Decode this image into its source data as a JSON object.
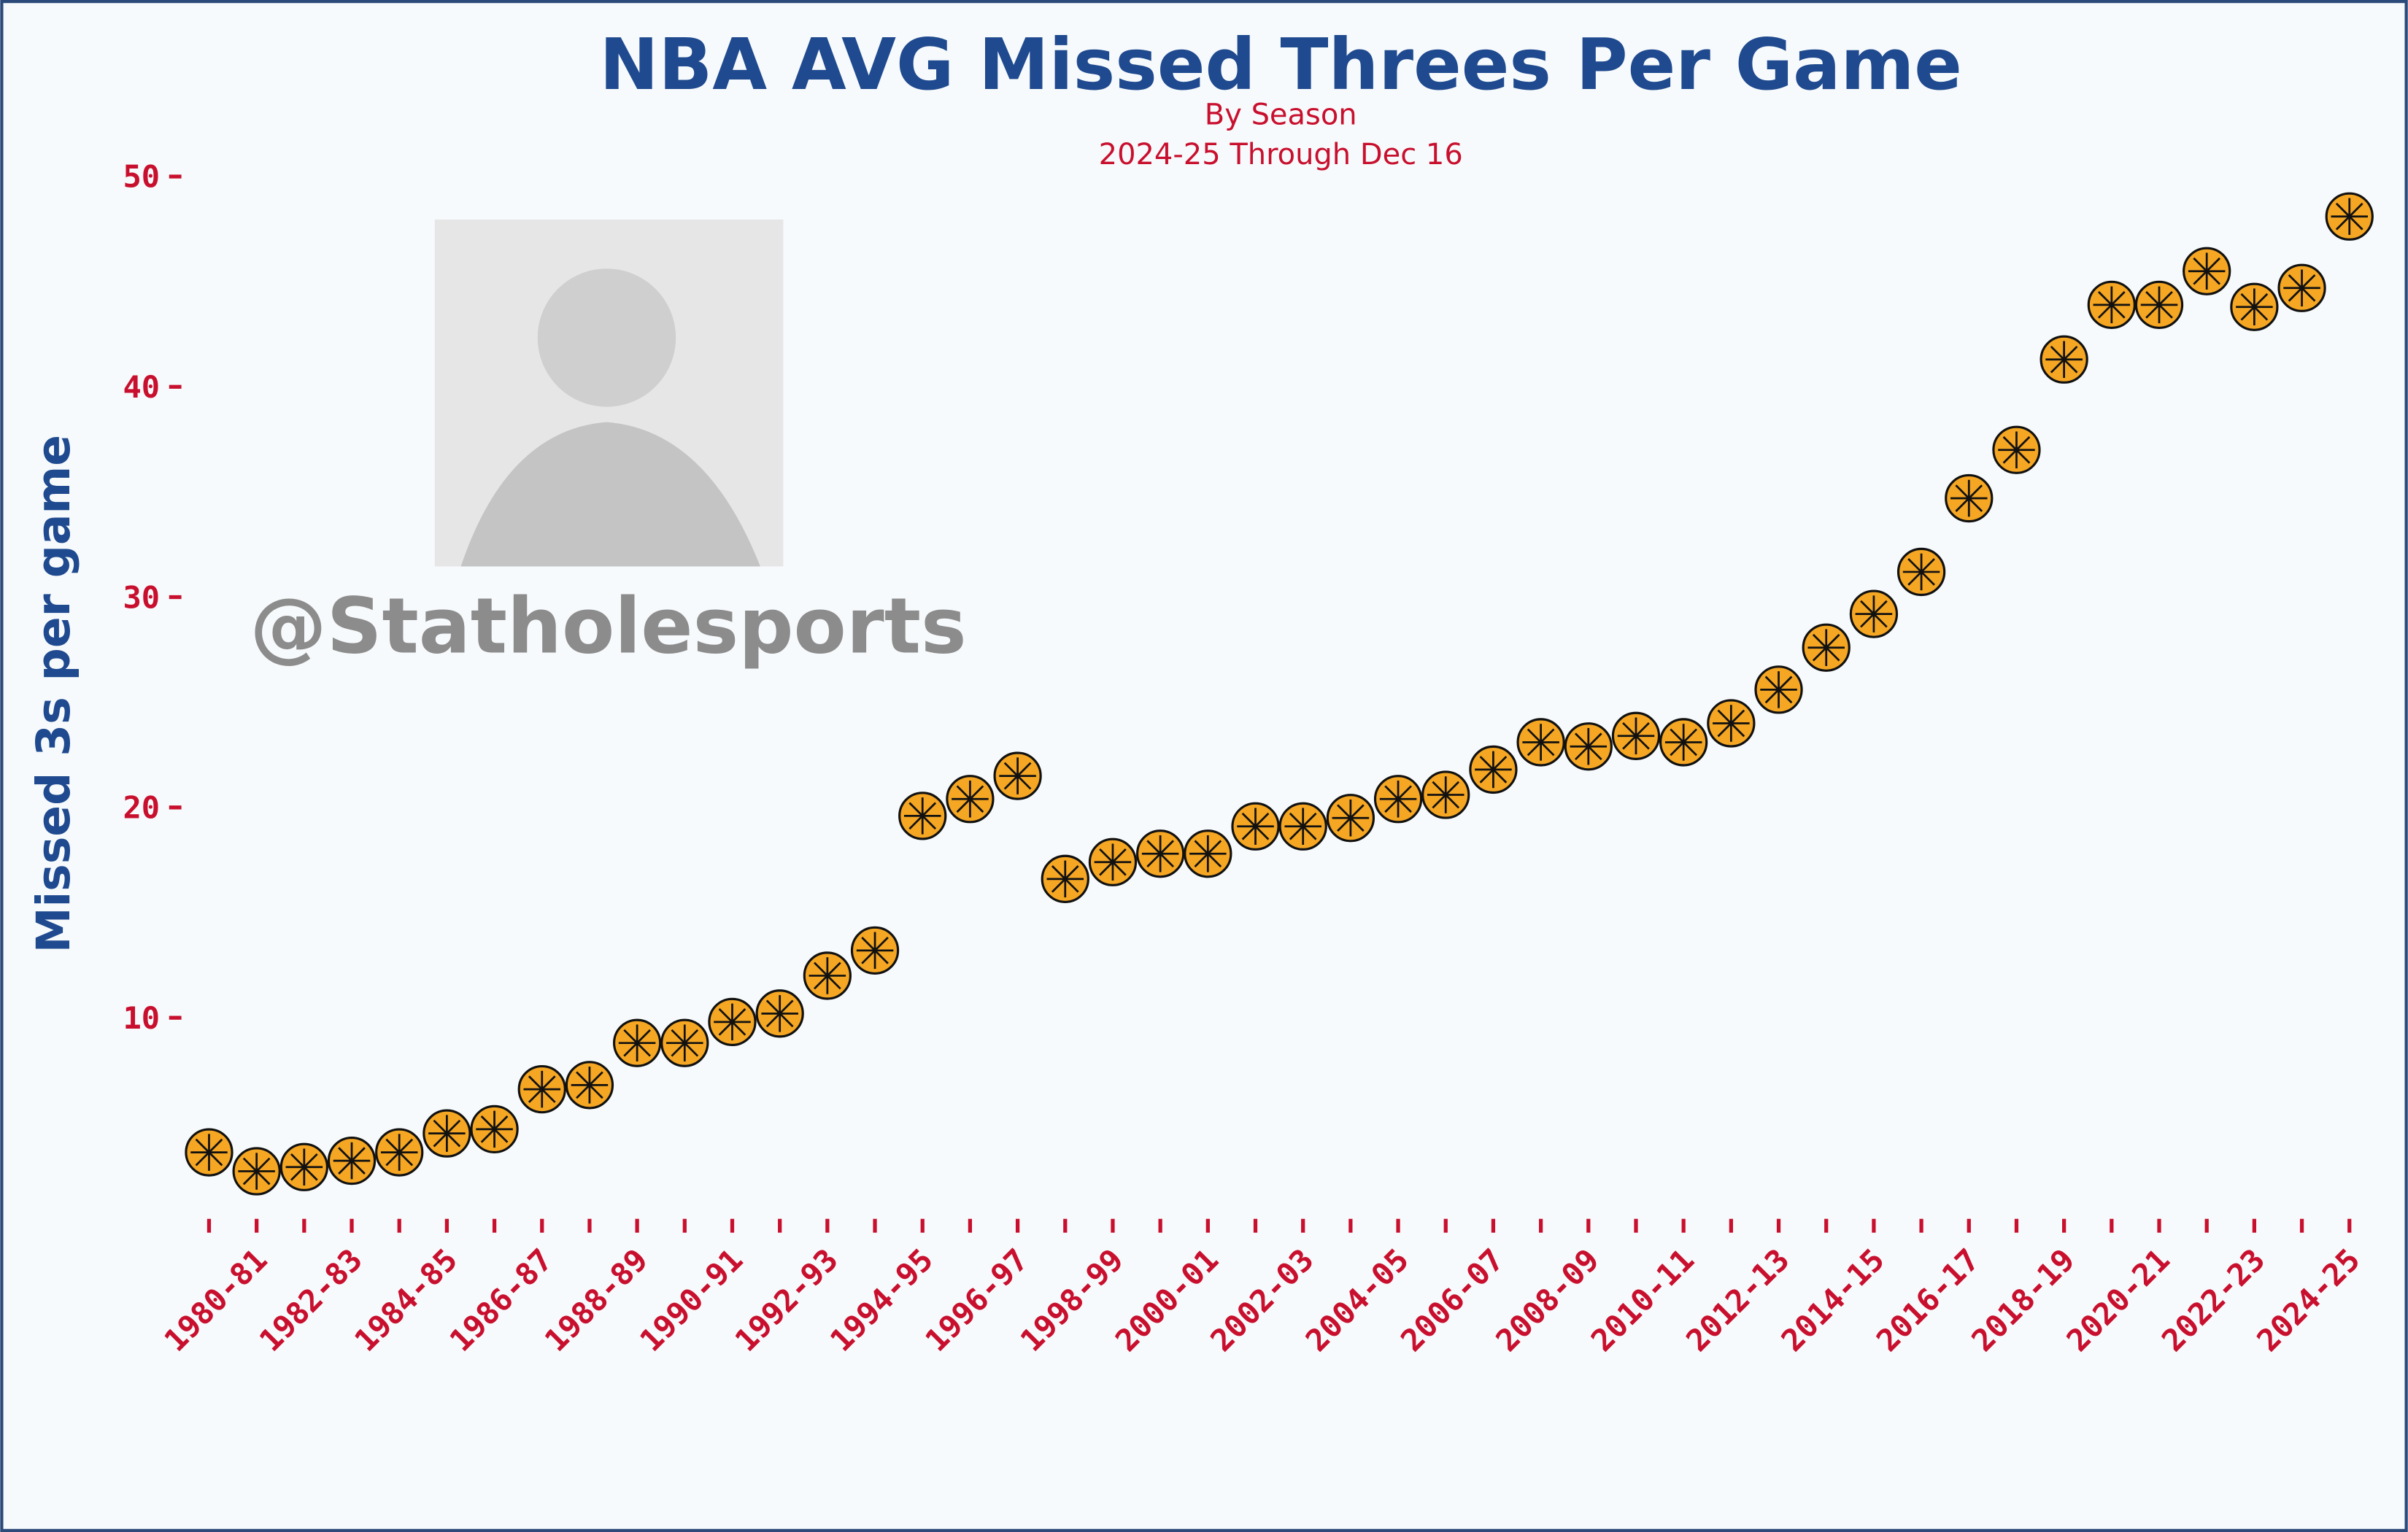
{
  "chart_data": {
    "type": "scatter",
    "title": "NBA AVG Missed Threes Per Game",
    "subtitle": "By Season",
    "note": "2024-25 Through Dec 16",
    "y_label": "Missed 3s per game",
    "watermark": "@Statholesports",
    "categories": [
      null,
      "1980-81",
      null,
      "1982-83",
      null,
      "1984-85",
      null,
      "1986-87",
      null,
      "1988-89",
      null,
      "1990-91",
      null,
      "1992-93",
      null,
      "1994-95",
      null,
      "1996-97",
      null,
      "1998-99",
      null,
      "2000-01",
      null,
      "2002-03",
      null,
      "2004-05",
      null,
      "2006-07",
      null,
      "2008-09",
      null,
      "2010-11",
      null,
      "2012-13",
      null,
      "2014-15",
      null,
      "2016-17",
      null,
      "2018-19",
      null,
      "2020-21",
      null,
      "2022-23",
      null,
      "2024-25"
    ],
    "values": [
      3.6,
      2.7,
      2.9,
      3.2,
      3.6,
      4.5,
      4.7,
      6.6,
      6.8,
      8.8,
      8.8,
      9.8,
      10.2,
      12.0,
      13.2,
      19.6,
      20.4,
      21.5,
      16.6,
      17.4,
      17.8,
      17.8,
      19.1,
      19.1,
      19.5,
      20.4,
      20.6,
      21.8,
      23.1,
      22.9,
      23.4,
      23.1,
      24.0,
      25.6,
      27.6,
      29.2,
      31.2,
      34.7,
      37.0,
      41.3,
      43.9,
      43.9,
      45.5,
      43.8,
      44.7,
      48.1
    ],
    "color": "#f5a623",
    "ylim": [
      0,
      50
    ],
    "yticks": [
      10,
      20,
      30,
      40,
      50
    ],
    "grid": false
  }
}
